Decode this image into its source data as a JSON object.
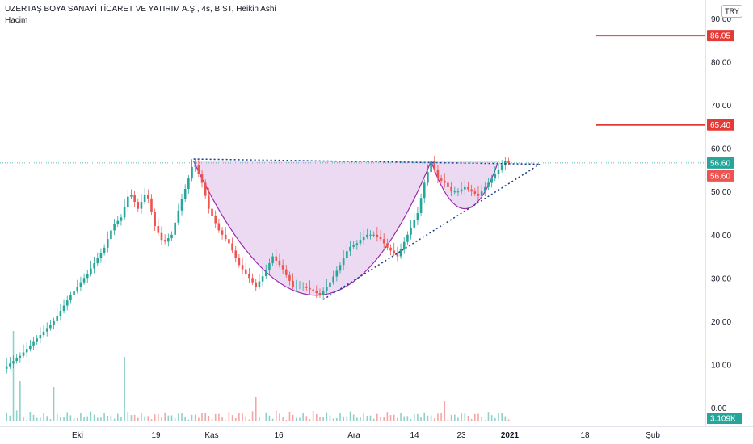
{
  "header": {
    "title": "UZERTAŞ BOYA SANAYİ TİCARET VE YATIRIM A.Ş., 4s, BIST, Heikin Ashi",
    "indicator": "Hacim"
  },
  "currency": "TRY",
  "colors": {
    "up": "#26a69a",
    "down": "#ef5350",
    "level": "#e53935",
    "cup_fill": "#e7d3ef",
    "cup_line": "#9c27b0",
    "trend": "#1e3a8a",
    "last_price": "#26a69a",
    "volume_up": "#8fd1c8",
    "volume_down": "#f4a6a4"
  },
  "chart_data": {
    "type": "candlestick",
    "style": "Heikin Ashi",
    "ylim": [
      0,
      90
    ],
    "y_ticks": [
      "90.00",
      "80.00",
      "70.00",
      "60.00",
      "50.00",
      "40.00",
      "30.00",
      "20.00",
      "10.00",
      "0.00"
    ],
    "x_ticks": [
      "Eki",
      "19",
      "Kas",
      "16",
      "Ara",
      "14",
      "23",
      "2021",
      "18",
      "Şub"
    ],
    "levels": [
      {
        "label": "86.05",
        "value": 86.05
      },
      {
        "label": "65.40",
        "value": 65.4
      }
    ],
    "last_price": {
      "label": "56.60",
      "value": 56.6
    },
    "second_price": {
      "label": "56.60",
      "value": 56.6
    },
    "volume_label": "3.109K",
    "close_path": [
      [
        0,
        9
      ],
      [
        10,
        12
      ],
      [
        20,
        16
      ],
      [
        30,
        20
      ],
      [
        40,
        26
      ],
      [
        50,
        31
      ],
      [
        60,
        37
      ],
      [
        65,
        42
      ],
      [
        70,
        44
      ],
      [
        75,
        50
      ],
      [
        80,
        46
      ],
      [
        85,
        50
      ],
      [
        90,
        42
      ],
      [
        95,
        38
      ],
      [
        100,
        40
      ],
      [
        105,
        47
      ],
      [
        110,
        53
      ],
      [
        113,
        57
      ],
      [
        118,
        52
      ],
      [
        122,
        46
      ],
      [
        128,
        41
      ],
      [
        134,
        38
      ],
      [
        140,
        33
      ],
      [
        146,
        30
      ],
      [
        150,
        28
      ],
      [
        155,
        31
      ],
      [
        160,
        35
      ],
      [
        166,
        32
      ],
      [
        172,
        28
      ],
      [
        178,
        28
      ],
      [
        184,
        27
      ],
      [
        188,
        26
      ],
      [
        194,
        29
      ],
      [
        200,
        33
      ],
      [
        205,
        37
      ],
      [
        210,
        38
      ],
      [
        215,
        40
      ],
      [
        220,
        40
      ],
      [
        224,
        39
      ],
      [
        228,
        37
      ],
      [
        234,
        35
      ],
      [
        240,
        40
      ],
      [
        246,
        45
      ],
      [
        250,
        52
      ],
      [
        254,
        57
      ],
      [
        258,
        53
      ],
      [
        262,
        52
      ],
      [
        266,
        50
      ],
      [
        270,
        50
      ],
      [
        274,
        51
      ],
      [
        278,
        50
      ],
      [
        282,
        49
      ],
      [
        286,
        51
      ],
      [
        290,
        53
      ],
      [
        294,
        55
      ],
      [
        298,
        57
      ],
      [
        300,
        56.6
      ]
    ],
    "volume_peaks": [
      21,
      14,
      5,
      4,
      3
    ]
  }
}
